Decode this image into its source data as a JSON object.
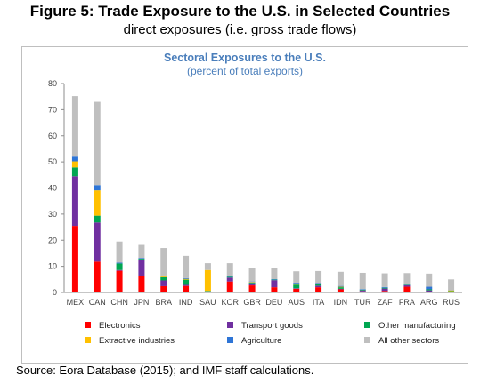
{
  "figure": {
    "title": "Figure 5: Trade Exposure to the U.S. in Selected Countries",
    "subtitle": "direct exposures (i.e. gross trade flows)",
    "source": "Source: Eora Database (2015); and IMF staff calculations."
  },
  "chart_data": {
    "type": "bar",
    "stacked": true,
    "title": "Sectoral Exposures to the U.S.",
    "subtitle": "(percent of total exports)",
    "xlabel": "",
    "ylabel": "",
    "ylim": [
      0,
      80
    ],
    "yticks": [
      0,
      10,
      20,
      30,
      40,
      50,
      60,
      70,
      80
    ],
    "grid": false,
    "legend_position": "bottom",
    "categories": [
      "MEX",
      "CAN",
      "CHN",
      "JPN",
      "BRA",
      "IND",
      "SAU",
      "KOR",
      "GBR",
      "DEU",
      "AUS",
      "ITA",
      "IDN",
      "TUR",
      "ZAF",
      "FRA",
      "ARG",
      "RUS"
    ],
    "series": [
      {
        "name": "Electronics",
        "color": "#ff0000",
        "values": [
          25.5,
          11.8,
          8.3,
          6.2,
          2.4,
          2.5,
          0.3,
          4.2,
          2.7,
          2.0,
          1.4,
          2.0,
          1.2,
          0.4,
          0.6,
          2.2,
          0.3,
          0.2
        ]
      },
      {
        "name": "Transport goods",
        "color": "#7030a0",
        "values": [
          19.0,
          15.0,
          0.3,
          6.3,
          2.2,
          0.4,
          0.1,
          1.5,
          0.8,
          2.7,
          0.2,
          0.6,
          0.2,
          0.4,
          0.9,
          0.6,
          0.5,
          0.1
        ]
      },
      {
        "name": "Other manufacturing",
        "color": "#00a651",
        "values": [
          3.4,
          2.6,
          2.5,
          0.4,
          1.2,
          2.0,
          0.2,
          0.3,
          0.3,
          0.2,
          1.4,
          0.8,
          0.6,
          0.3,
          0.3,
          0.2,
          0.4,
          0.2
        ]
      },
      {
        "name": "Extractive industries",
        "color": "#ffc000",
        "values": [
          2.3,
          9.7,
          0.0,
          0.0,
          0.3,
          0.3,
          8.0,
          0.0,
          0.2,
          0.0,
          0.4,
          0.0,
          0.2,
          0.0,
          0.0,
          0.0,
          0.0,
          0.3
        ]
      },
      {
        "name": "Agriculture",
        "color": "#2e75d6",
        "values": [
          1.8,
          2.0,
          0.3,
          0.3,
          0.4,
          0.3,
          0.0,
          0.2,
          0.2,
          0.2,
          0.3,
          0.2,
          0.3,
          0.2,
          0.3,
          0.2,
          1.0,
          0.1
        ]
      },
      {
        "name": "All other sectors",
        "color": "#bfbfbf",
        "values": [
          23.2,
          31.9,
          8.1,
          5.0,
          10.5,
          8.5,
          2.6,
          5.0,
          5.0,
          4.1,
          4.4,
          4.6,
          5.4,
          6.2,
          5.2,
          4.2,
          5.0,
          4.1
        ]
      }
    ]
  }
}
